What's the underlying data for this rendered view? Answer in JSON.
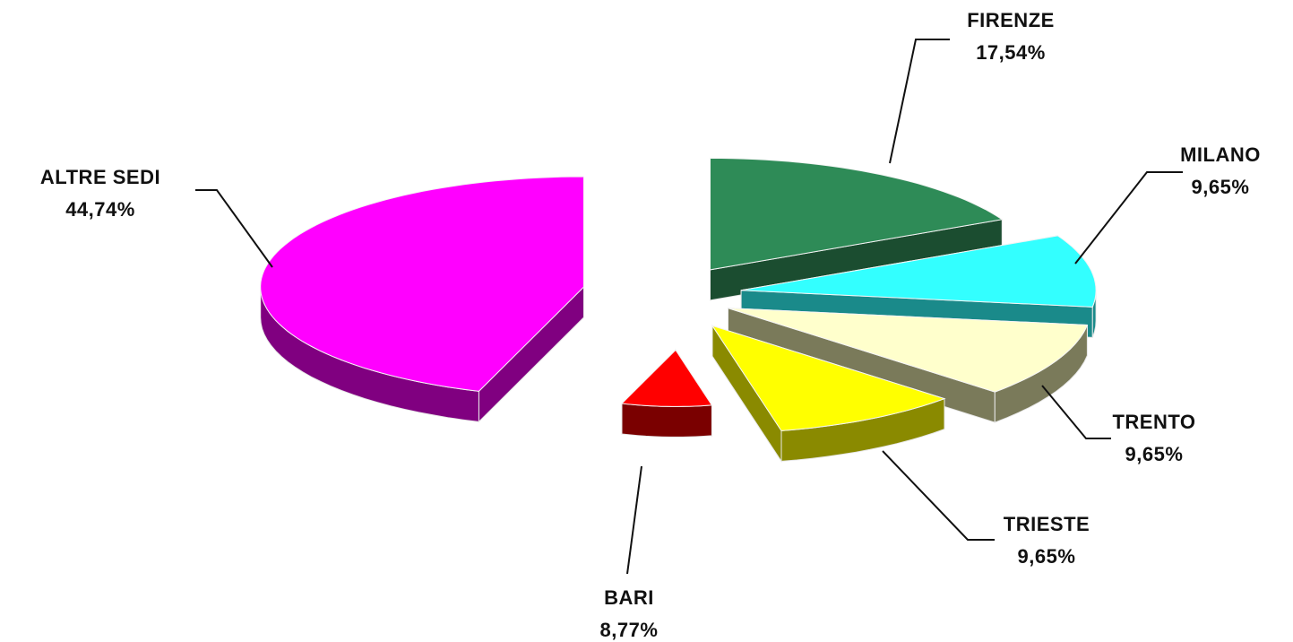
{
  "chart_data": {
    "type": "pie",
    "title": "",
    "slices": [
      {
        "label": "FIRENZE",
        "value": 17.54,
        "value_text": "17,54%",
        "color": "#2e8b57",
        "side_color": "#1b4d30"
      },
      {
        "label": "MILANO",
        "value": 9.65,
        "value_text": "9,65%",
        "color": "#33ffff",
        "side_color": "#1a8a8a"
      },
      {
        "label": "TRENTO",
        "value": 9.65,
        "value_text": "9,65%",
        "color": "#ffffcc",
        "side_color": "#7a7a5a"
      },
      {
        "label": "TRIESTE",
        "value": 9.65,
        "value_text": "9,65%",
        "color": "#ffff00",
        "side_color": "#8a8a00"
      },
      {
        "label": "BARI",
        "value": 8.77,
        "value_text": "8,77%",
        "color": "#ff0000",
        "side_color": "#7a0000"
      },
      {
        "label": "ALTRE SEDI",
        "value": 44.74,
        "value_text": "44,74%",
        "color": "#ff00ff",
        "side_color": "#800080"
      }
    ],
    "exploded": true,
    "style": "3d"
  }
}
